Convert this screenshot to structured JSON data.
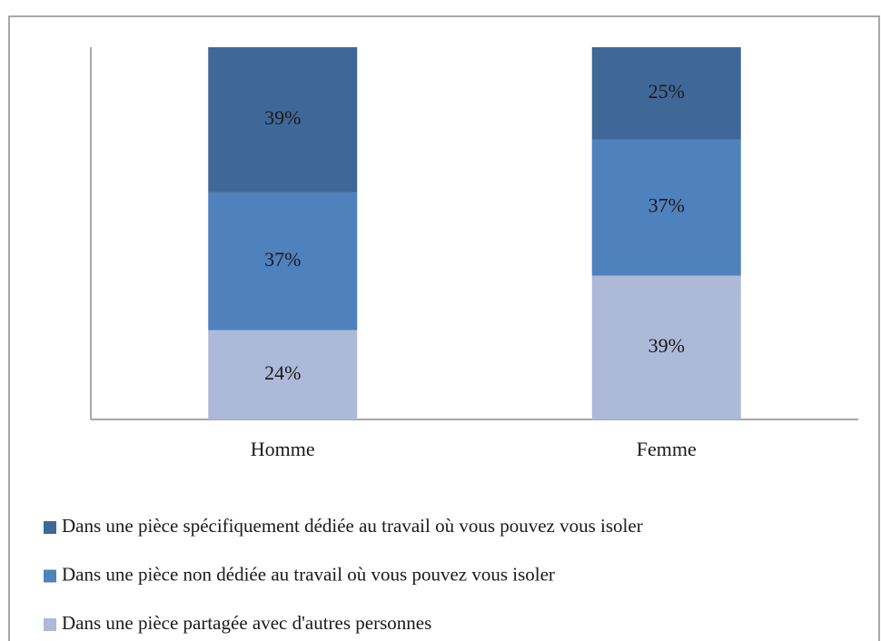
{
  "chart_data": {
    "type": "stacked_bar",
    "categories": [
      "Homme",
      "Femme"
    ],
    "series": [
      {
        "name": "Dans une pièce spécifiquement dédiée au travail où vous pouvez vous isoler",
        "color": "#3f6898",
        "values": [
          39,
          25
        ],
        "value_labels": [
          "39%",
          "25%"
        ]
      },
      {
        "name": "Dans une pièce non dédiée au travail où vous pouvez vous isoler",
        "color": "#4f81bd",
        "values": [
          37,
          37
        ],
        "value_labels": [
          "37%",
          "37%"
        ]
      },
      {
        "name": "Dans une pièce partagée avec d'autres personnes",
        "color": "#adb9d8",
        "values": [
          24,
          39
        ],
        "value_labels": [
          "24%",
          "39%"
        ]
      }
    ]
  }
}
